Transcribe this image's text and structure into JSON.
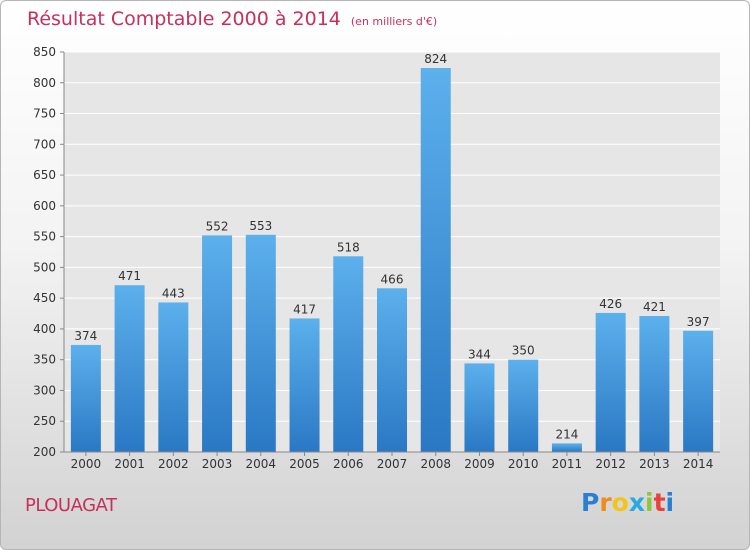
{
  "chart_data": {
    "type": "bar",
    "title": "Résultat Comptable 2000 à 2014",
    "subtitle": "(en milliers d'€)",
    "categories": [
      "2000",
      "2001",
      "2002",
      "2003",
      "2004",
      "2005",
      "2006",
      "2007",
      "2008",
      "2009",
      "2010",
      "2011",
      "2012",
      "2013",
      "2014"
    ],
    "values": [
      374,
      471,
      443,
      552,
      553,
      417,
      518,
      466,
      824,
      344,
      350,
      214,
      426,
      421,
      397
    ],
    "ylim": [
      200,
      850
    ],
    "yticks": [
      200,
      250,
      300,
      350,
      400,
      450,
      500,
      550,
      600,
      650,
      700,
      750,
      800,
      850
    ],
    "grid": true,
    "bar_color": "#3a8fd6"
  },
  "footer": {
    "city": "PLOUAGAT",
    "brand_letters": [
      "P",
      "r",
      "o",
      "x",
      "i",
      "t",
      "i"
    ],
    "brand_colors": [
      "#2a7fd4",
      "#f08a1c",
      "#f2c51a",
      "#2aa8e0",
      "#8dc63f",
      "#e8403a",
      "#2a7fd4"
    ]
  }
}
